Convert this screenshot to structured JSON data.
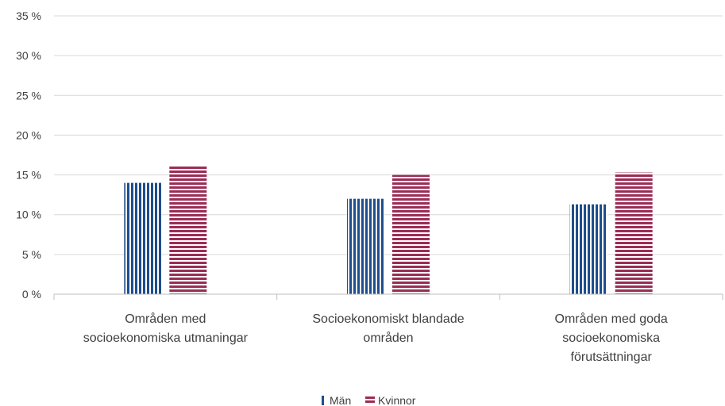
{
  "chart_data": {
    "type": "bar",
    "categories": [
      [
        "Områden med",
        "socioekonomiska utmaningar"
      ],
      [
        "Socioekonomiskt blandade",
        "områden"
      ],
      [
        "Områden med goda",
        "socioekonomiska",
        "förutsättningar"
      ]
    ],
    "series": [
      {
        "name": "Män",
        "values": [
          14.0,
          12.0,
          11.3
        ],
        "color": "#1f4e8c",
        "pattern": "vertical-stripes"
      },
      {
        "name": "Kvinnor",
        "values": [
          16.2,
          15.0,
          15.3
        ],
        "color": "#9b2d55",
        "pattern": "horizontal-stripes"
      }
    ],
    "ylim": [
      0,
      35
    ],
    "yticks": [
      0,
      5,
      10,
      15,
      20,
      25,
      30,
      35
    ],
    "ytick_labels": [
      "0 %",
      "5 %",
      "10 %",
      "15 %",
      "20 %",
      "25 %",
      "30 %",
      "35 %"
    ],
    "grid": true,
    "legend_position": "bottom-center",
    "title": "",
    "xlabel": "",
    "ylabel": ""
  }
}
